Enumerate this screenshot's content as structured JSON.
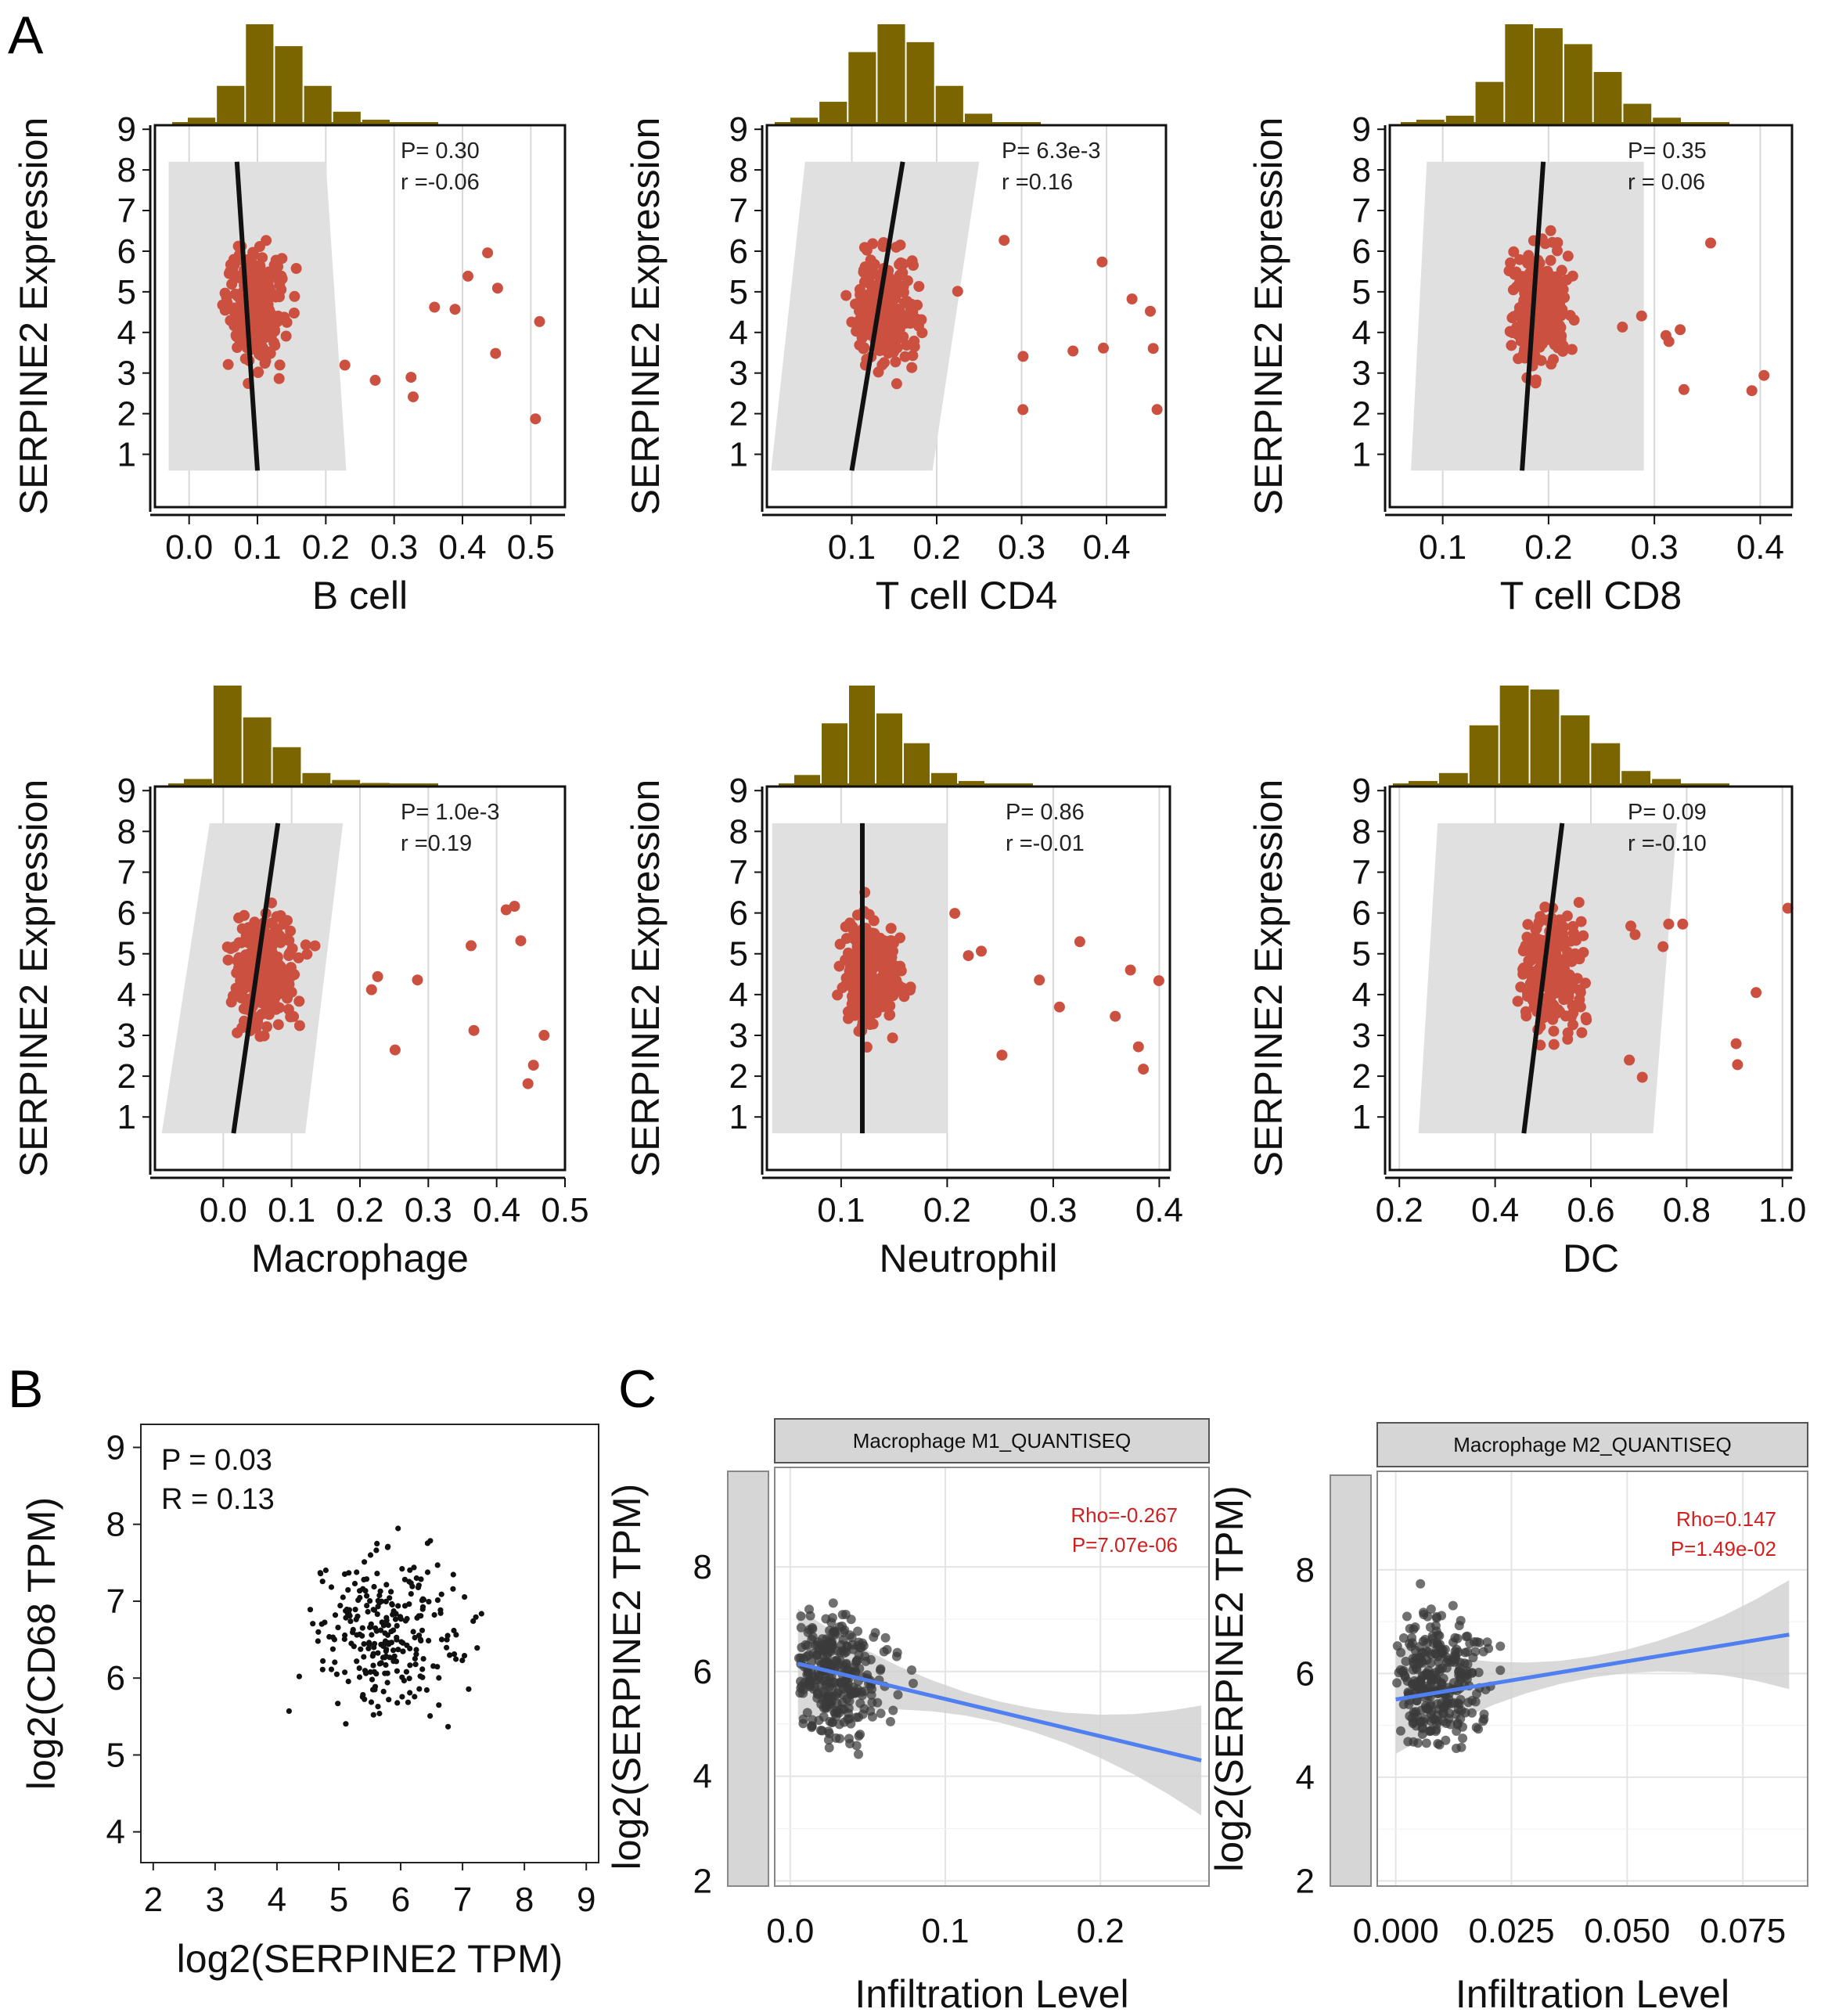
{
  "panel_labels": {
    "A": "A",
    "B": "B",
    "C": "C"
  },
  "colors": {
    "point_a": "#cc5040",
    "hist": "#7a6500",
    "band": "#e0e0e0",
    "blue_line": "#4f7ff0",
    "stat_red": "#d02020"
  },
  "chart_data": [
    {
      "id": "a1",
      "type": "scatter",
      "xlabel": "B cell",
      "ylabel": "SERPINE2 Expression",
      "p_text": "P= 0.30",
      "r_text": "r =-0.06",
      "xlim": [
        -0.05,
        0.55
      ],
      "ylim": [
        -0.3,
        9.1
      ],
      "xticks": [
        0.0,
        0.1,
        0.2,
        0.3,
        0.4,
        0.5
      ],
      "xtick_labels": [
        "0.0",
        "0.1",
        "0.2",
        "0.3",
        "0.4",
        "0.5"
      ],
      "yticks": [
        1,
        2,
        3,
        4,
        5,
        6,
        7,
        8,
        9
      ],
      "fit": [
        [
          0.07,
          8.2
        ],
        [
          0.1,
          0.6
        ]
      ],
      "band": [
        [
          -0.03,
          8.2
        ],
        [
          0.2,
          8.2
        ],
        [
          0.23,
          0.6
        ],
        [
          -0.03,
          0.6
        ]
      ]
    },
    {
      "id": "a2",
      "type": "scatter",
      "xlabel": "T cell CD4",
      "ylabel": "SERPINE2 Expression",
      "p_text": "P= 6.3e-3",
      "r_text": "r =0.16",
      "xlim": [
        0.0,
        0.47
      ],
      "ylim": [
        -0.3,
        9.1
      ],
      "xticks": [
        0.1,
        0.2,
        0.3,
        0.4
      ],
      "xtick_labels": [
        "0.1",
        "0.2",
        "0.3",
        "0.4"
      ],
      "yticks": [
        1,
        2,
        3,
        4,
        5,
        6,
        7,
        8,
        9
      ],
      "fit": [
        [
          0.1,
          0.6
        ],
        [
          0.16,
          8.2
        ]
      ],
      "band": [
        [
          0.045,
          8.2
        ],
        [
          0.25,
          8.2
        ],
        [
          0.195,
          0.6
        ],
        [
          0.005,
          0.6
        ]
      ]
    },
    {
      "id": "a3",
      "type": "scatter",
      "xlabel": "T cell CD8",
      "ylabel": "SERPINE2 Expression",
      "p_text": "P= 0.35",
      "r_text": "r = 0.06",
      "xlim": [
        0.05,
        0.43
      ],
      "ylim": [
        -0.3,
        9.1
      ],
      "xticks": [
        0.1,
        0.2,
        0.3,
        0.4
      ],
      "xtick_labels": [
        "0.1",
        "0.2",
        "0.3",
        "0.4"
      ],
      "yticks": [
        1,
        2,
        3,
        4,
        5,
        6,
        7,
        8,
        9
      ],
      "fit": [
        [
          0.175,
          0.6
        ],
        [
          0.195,
          8.2
        ]
      ],
      "band": [
        [
          0.085,
          8.2
        ],
        [
          0.29,
          8.2
        ],
        [
          0.29,
          0.6
        ],
        [
          0.07,
          0.6
        ]
      ]
    },
    {
      "id": "a4",
      "type": "scatter",
      "xlabel": "Macrophage",
      "ylabel": "SERPINE2 Expression",
      "p_text": "P= 1.0e-3",
      "r_text": "r =0.19",
      "xlim": [
        -0.1,
        0.5
      ],
      "ylim": [
        -0.3,
        9.1
      ],
      "xticks": [
        0.0,
        0.1,
        0.2,
        0.3,
        0.4,
        0.5
      ],
      "xtick_labels": [
        "0.0",
        "0.1",
        "0.2",
        "0.3",
        "0.4",
        "0.5"
      ],
      "yticks": [
        1,
        2,
        3,
        4,
        5,
        6,
        7,
        8,
        9
      ],
      "fit": [
        [
          0.015,
          0.6
        ],
        [
          0.08,
          8.2
        ]
      ],
      "band": [
        [
          -0.02,
          8.2
        ],
        [
          0.175,
          8.2
        ],
        [
          0.12,
          0.6
        ],
        [
          -0.09,
          0.6
        ]
      ]
    },
    {
      "id": "a5",
      "type": "scatter",
      "xlabel": "Neutrophil",
      "ylabel": "SERPINE2 Expression",
      "p_text": "P= 0.86",
      "r_text": "r =-0.01",
      "xlim": [
        0.03,
        0.41
      ],
      "ylim": [
        -0.3,
        9.1
      ],
      "xticks": [
        0.1,
        0.2,
        0.3,
        0.4
      ],
      "xtick_labels": [
        "0.1",
        "0.2",
        "0.3",
        "0.4"
      ],
      "yticks": [
        1,
        2,
        3,
        4,
        5,
        6,
        7,
        8,
        9
      ],
      "fit": [
        [
          0.12,
          8.2
        ],
        [
          0.12,
          0.6
        ]
      ],
      "band": [
        [
          0.035,
          8.2
        ],
        [
          0.2,
          8.2
        ],
        [
          0.2,
          0.6
        ],
        [
          0.035,
          0.6
        ]
      ]
    },
    {
      "id": "a6",
      "type": "scatter",
      "xlabel": "DC",
      "ylabel": "SERPINE2 Expression",
      "p_text": "P= 0.09",
      "r_text": "r =-0.10",
      "xlim": [
        0.18,
        1.02
      ],
      "ylim": [
        -0.3,
        9.1
      ],
      "xticks": [
        0.2,
        0.4,
        0.6,
        0.8,
        1.0
      ],
      "xtick_labels": [
        "0.2",
        "0.4",
        "0.6",
        "0.8",
        "1.0"
      ],
      "yticks": [
        1,
        2,
        3,
        4,
        5,
        6,
        7,
        8,
        9
      ],
      "fit": [
        [
          0.46,
          0.6
        ],
        [
          0.54,
          8.2
        ]
      ],
      "band": [
        [
          0.28,
          8.2
        ],
        [
          0.78,
          8.2
        ],
        [
          0.73,
          0.6
        ],
        [
          0.24,
          0.6
        ]
      ]
    },
    {
      "id": "b",
      "type": "scatter",
      "xlabel": "log2(SERPINE2 TPM)",
      "ylabel": "log2(CD68 TPM)",
      "p_text": "P = 0.03",
      "r_text": "R = 0.13",
      "xlim": [
        1.8,
        9.2
      ],
      "ylim": [
        3.6,
        9.3
      ],
      "xticks": [
        2,
        3,
        4,
        5,
        6,
        7,
        8,
        9
      ],
      "xtick_labels": [
        "2",
        "3",
        "4",
        "5",
        "6",
        "7",
        "8",
        "9"
      ],
      "yticks": [
        4,
        5,
        6,
        7,
        8,
        9
      ],
      "ytick_labels": [
        "4",
        "5",
        "6",
        "7",
        "8",
        "9"
      ]
    },
    {
      "id": "c1",
      "type": "scatter",
      "strip": "Macrophage M1_QUANTISEQ",
      "xlabel": "Infiltration Level",
      "ylabel": "log2(SERPINE2 TPM)",
      "p_text": "P=7.07e-06",
      "r_text": "Rho=-0.267",
      "xlim": [
        -0.01,
        0.27
      ],
      "ylim": [
        1.9,
        9.9
      ],
      "xticks": [
        0.0,
        0.1,
        0.2
      ],
      "xtick_labels": [
        "0.0",
        "0.1",
        "0.2"
      ],
      "yticks": [
        2,
        4,
        6,
        8
      ],
      "ytick_labels": [
        "2",
        "4",
        "6",
        "8"
      ],
      "fit": [
        [
          0.005,
          6.15
        ],
        [
          0.265,
          4.3
        ]
      ]
    },
    {
      "id": "c2",
      "type": "scatter",
      "strip": "Macrophage M2_QUANTISEQ",
      "xlabel": "Infiltration Level",
      "ylabel": "log2(SERPINE2 TPM)",
      "p_text": "P=1.49e-02",
      "r_text": "Rho=0.147",
      "xlim": [
        -0.004,
        0.089
      ],
      "ylim": [
        1.9,
        9.9
      ],
      "xticks": [
        0.0,
        0.025,
        0.05,
        0.075
      ],
      "xtick_labels": [
        "0.000",
        "0.025",
        "0.050",
        "0.075"
      ],
      "yticks": [
        2,
        4,
        6,
        8
      ],
      "ytick_labels": [
        "2",
        "4",
        "6",
        "8"
      ],
      "fit": [
        [
          0.0,
          5.5
        ],
        [
          0.085,
          6.75
        ]
      ]
    }
  ]
}
